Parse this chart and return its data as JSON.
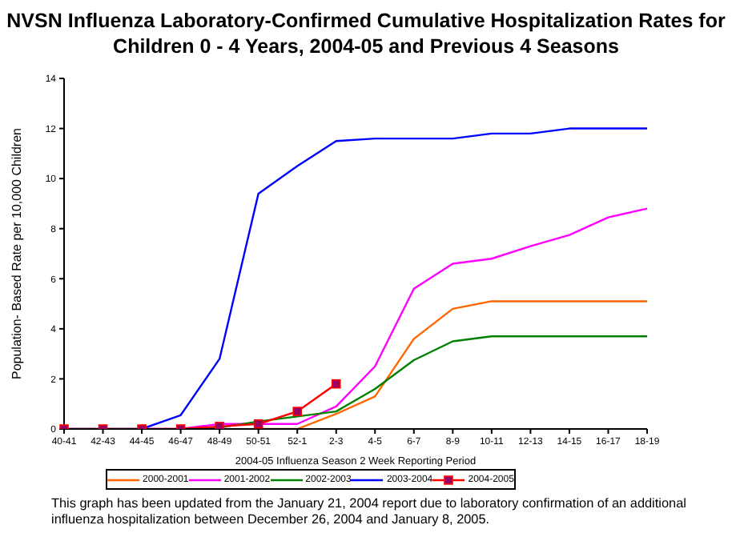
{
  "chart_data": {
    "type": "line",
    "title": "NVSN Influenza Laboratory-Confirmed Cumulative Hospitalization Rates for Children 0 - 4 Years, 2004-05 and Previous 4 Seasons",
    "xlabel": "2004-05 Influenza Season 2 Week Reporting Period",
    "ylabel": "Population- Based Rate per 10,000 Children",
    "categories": [
      "40-41",
      "42-43",
      "44-45",
      "46-47",
      "48-49",
      "50-51",
      "52-1",
      "2-3",
      "4-5",
      "6-7",
      "8-9",
      "10-11",
      "12-13",
      "14-15",
      "16-17",
      "18-19"
    ],
    "series": [
      {
        "name": "2000-2001",
        "color": "#ff6600",
        "values": [
          null,
          null,
          null,
          null,
          null,
          0,
          0,
          0.6,
          1.3,
          3.6,
          4.8,
          5.1,
          5.1,
          5.1,
          5.1,
          5.1
        ]
      },
      {
        "name": "2001-2002",
        "color": "#ff00ff",
        "values": [
          null,
          null,
          0,
          0,
          0.2,
          0.2,
          0.2,
          0.9,
          2.5,
          5.6,
          6.6,
          6.8,
          7.3,
          7.75,
          8.45,
          8.8
        ]
      },
      {
        "name": "2002-2003",
        "color": "#008000",
        "values": [
          null,
          null,
          null,
          0,
          0.05,
          0.3,
          0.5,
          0.7,
          1.6,
          2.75,
          3.5,
          3.7,
          3.7,
          3.7,
          3.7,
          3.7
        ]
      },
      {
        "name": "2003-2004",
        "color": "#0000ff",
        "values": [
          0,
          0,
          0,
          0.55,
          2.8,
          9.4,
          10.5,
          11.5,
          11.6,
          11.6,
          11.6,
          11.8,
          11.8,
          12.0,
          12.0,
          12.0
        ]
      },
      {
        "name": "2004-2005",
        "color": "#ff0000",
        "marker": "square",
        "values": [
          0,
          0,
          0,
          0,
          0.1,
          0.2,
          0.7,
          1.8,
          null,
          null,
          null,
          null,
          null,
          null,
          null,
          null
        ]
      }
    ],
    "ylim": [
      0,
      14
    ],
    "yticks": [
      0,
      2,
      4,
      6,
      8,
      10,
      12,
      14
    ],
    "grid": false,
    "legend": "bottom",
    "marker": "none",
    "line_style": "solid",
    "annotations": [
      "This graph has been updated from the January 21, 2004 report due to laboratory confirmation of an additional influenza hospitalization between December 26, 2004 and January 8, 2005."
    ]
  }
}
